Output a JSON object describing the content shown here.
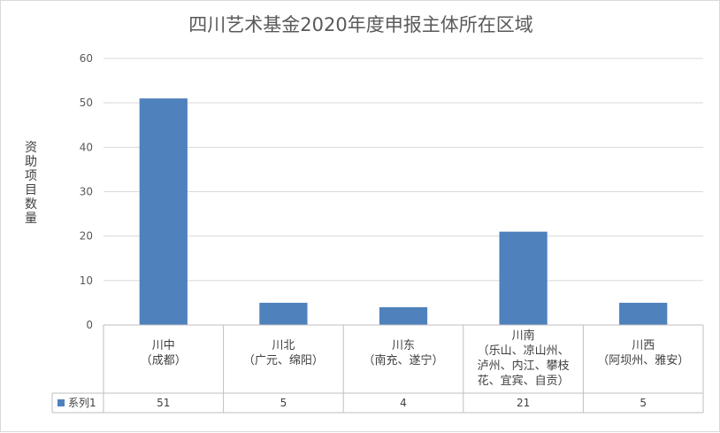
{
  "chart_data": {
    "type": "bar",
    "title": "四川艺术基金2020年度申报主体所在区域",
    "ylabel": "资助项目数量",
    "xlabel": "",
    "ylim": [
      0,
      60
    ],
    "yticks": [
      0,
      10,
      20,
      30,
      40,
      50,
      60
    ],
    "grid": true,
    "bar_color": "#4f81bd",
    "categories": [
      [
        "川中",
        "（成都）"
      ],
      [
        "川北",
        "（广元、绵阳）"
      ],
      [
        "川东",
        "（南充、遂宁）"
      ],
      [
        "川南",
        "（乐山、凉山州、",
        "泸州、内江、攀枝",
        "花、宜宾、自贡）"
      ],
      [
        "川西",
        "（阿坝州、雅安）"
      ]
    ],
    "series": [
      {
        "name": "系列1",
        "values": [
          51,
          5,
          4,
          21,
          5
        ]
      }
    ]
  }
}
